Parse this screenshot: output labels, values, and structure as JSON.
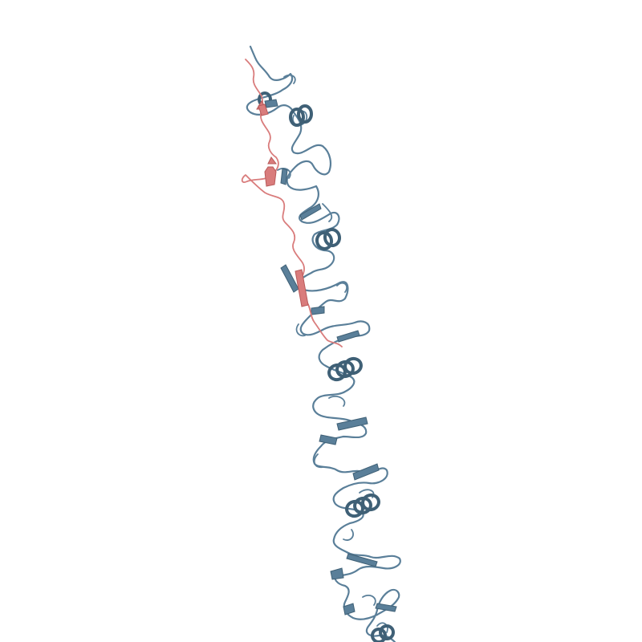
{
  "scene": {
    "background": "#ffffff",
    "chains": [
      {
        "name": "chain-a",
        "color": "#5a7f99",
        "shade": "#3f6076"
      },
      {
        "name": "chain-b",
        "color": "#d97c7c",
        "shade": "#b85a5a"
      }
    ]
  }
}
